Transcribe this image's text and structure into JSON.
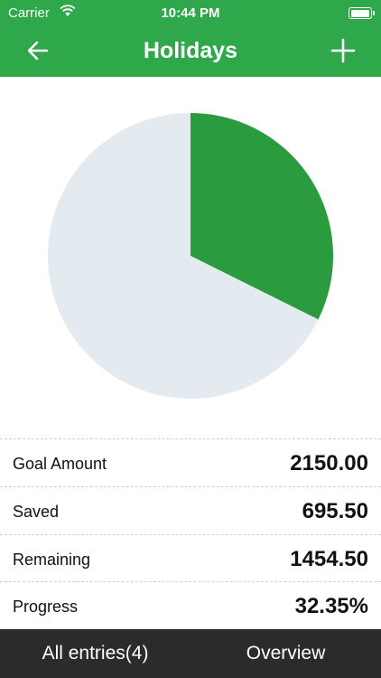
{
  "status_bar": {
    "carrier": "Carrier",
    "time": "10:44 PM",
    "battery_level": 1.0
  },
  "nav": {
    "title": "Holidays",
    "back_icon": "arrow-left-icon",
    "add_icon": "plus-icon"
  },
  "chart_data": {
    "type": "pie",
    "slices": [
      {
        "label": "Saved",
        "value": 695.5,
        "color": "#2a9b3f"
      },
      {
        "label": "Remaining",
        "value": 1454.5,
        "color": "#e3eaf0"
      }
    ]
  },
  "stats": [
    {
      "label": "Goal Amount",
      "value": "2150.00"
    },
    {
      "label": "Saved",
      "value": "695.50"
    },
    {
      "label": "Remaining",
      "value": "1454.50"
    },
    {
      "label": "Progress",
      "value": "32.35%"
    }
  ],
  "tabs": [
    {
      "label": "All entries(4)"
    },
    {
      "label": "Overview"
    }
  ],
  "colors": {
    "header": "#2ea84a",
    "bottom_bar": "#2b2b2b"
  }
}
